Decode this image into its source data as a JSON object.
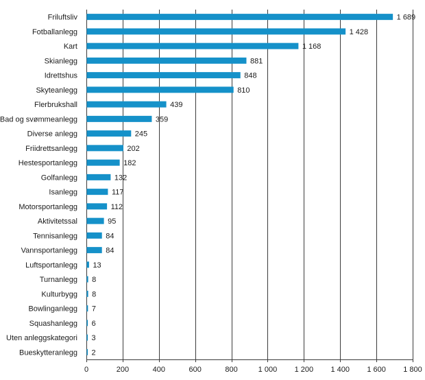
{
  "chart_data": {
    "type": "bar",
    "orientation": "horizontal",
    "title": "",
    "xlabel": "",
    "ylabel": "",
    "xlim": [
      0,
      1800
    ],
    "grid": true,
    "bar_color": "#1591c9",
    "ticks": [
      {
        "value": 0,
        "label": "0"
      },
      {
        "value": 200,
        "label": "200"
      },
      {
        "value": 400,
        "label": "400"
      },
      {
        "value": 600,
        "label": "600"
      },
      {
        "value": 800,
        "label": "800"
      },
      {
        "value": 1000,
        "label": "1 000"
      },
      {
        "value": 1200,
        "label": "1 200"
      },
      {
        "value": 1400,
        "label": "1 400"
      },
      {
        "value": 1600,
        "label": "1 600"
      },
      {
        "value": 1800,
        "label": "1 800"
      }
    ],
    "bars": [
      {
        "category": "Friluftsliv",
        "value": 1689,
        "label": "1 689"
      },
      {
        "category": "Fotballanlegg",
        "value": 1428,
        "label": "1 428"
      },
      {
        "category": "Kart",
        "value": 1168,
        "label": "1 168"
      },
      {
        "category": "Skianlegg",
        "value": 881,
        "label": "881"
      },
      {
        "category": "Idrettshus",
        "value": 848,
        "label": "848"
      },
      {
        "category": "Skyteanlegg",
        "value": 810,
        "label": "810"
      },
      {
        "category": "Flerbrukshall",
        "value": 439,
        "label": "439"
      },
      {
        "category": "Bad og svømmeanlegg",
        "value": 359,
        "label": "359"
      },
      {
        "category": "Diverse anlegg",
        "value": 245,
        "label": "245"
      },
      {
        "category": "Friidrettsanlegg",
        "value": 202,
        "label": "202"
      },
      {
        "category": "Hestesportanlegg",
        "value": 182,
        "label": "182"
      },
      {
        "category": "Golfanlegg",
        "value": 132,
        "label": "132"
      },
      {
        "category": "Isanlegg",
        "value": 117,
        "label": "117"
      },
      {
        "category": "Motorsportanlegg",
        "value": 112,
        "label": "112"
      },
      {
        "category": "Aktivitetssal",
        "value": 95,
        "label": "95"
      },
      {
        "category": "Tennisanlegg",
        "value": 84,
        "label": "84"
      },
      {
        "category": "Vannsportanlegg",
        "value": 84,
        "label": "84"
      },
      {
        "category": "Luftsportanlegg",
        "value": 13,
        "label": "13"
      },
      {
        "category": "Turnanlegg",
        "value": 8,
        "label": "8"
      },
      {
        "category": "Kulturbygg",
        "value": 8,
        "label": "8"
      },
      {
        "category": "Bowlinganlegg",
        "value": 7,
        "label": "7"
      },
      {
        "category": "Squashanlegg",
        "value": 6,
        "label": "6"
      },
      {
        "category": "Uten anleggskategori",
        "value": 3,
        "label": "3"
      },
      {
        "category": "Bueskytteranlegg",
        "value": 2,
        "label": "2"
      }
    ]
  }
}
